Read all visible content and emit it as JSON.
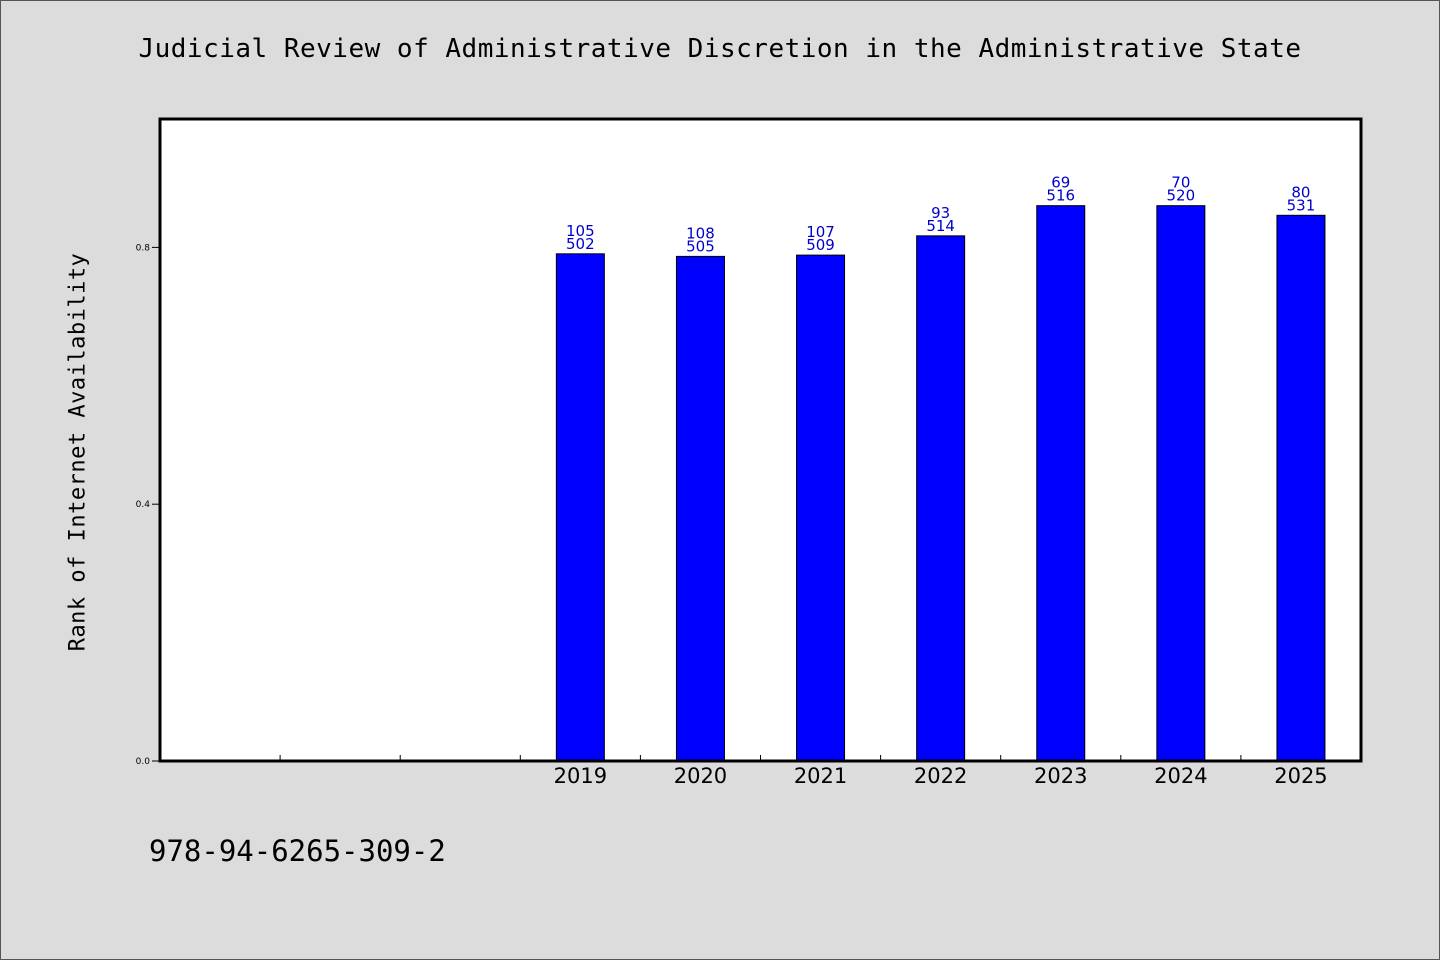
{
  "title": "Judicial Review of Administrative Discretion in the Administrative State",
  "footer_code": "978-94-6265-309-2",
  "colors": {
    "background": "#dcdcdc",
    "plot_background": "#ffffff",
    "bar_fill": "#0000ff",
    "data_label": "#0000cc"
  },
  "chart_data": {
    "type": "bar",
    "title": "Judicial Review of Administrative Discretion in the Administrative State",
    "xlabel": "",
    "ylabel": "Rank of Internet Availability",
    "ylim": [
      0,
      1.0
    ],
    "yticks": [
      "0.0",
      "0.4",
      "0.8"
    ],
    "xlim": [
      2015.5,
      2025.5
    ],
    "categories": [
      "2019",
      "2020",
      "2021",
      "2022",
      "2023",
      "2024",
      "2025"
    ],
    "values": [
      0.79,
      0.786,
      0.788,
      0.818,
      0.865,
      0.865,
      0.85
    ],
    "labels_top": [
      "105",
      "108",
      "107",
      "93",
      "69",
      "70",
      "80"
    ],
    "labels_bottom": [
      "502",
      "505",
      "509",
      "514",
      "516",
      "520",
      "531"
    ],
    "grid": false,
    "legend": "none"
  }
}
